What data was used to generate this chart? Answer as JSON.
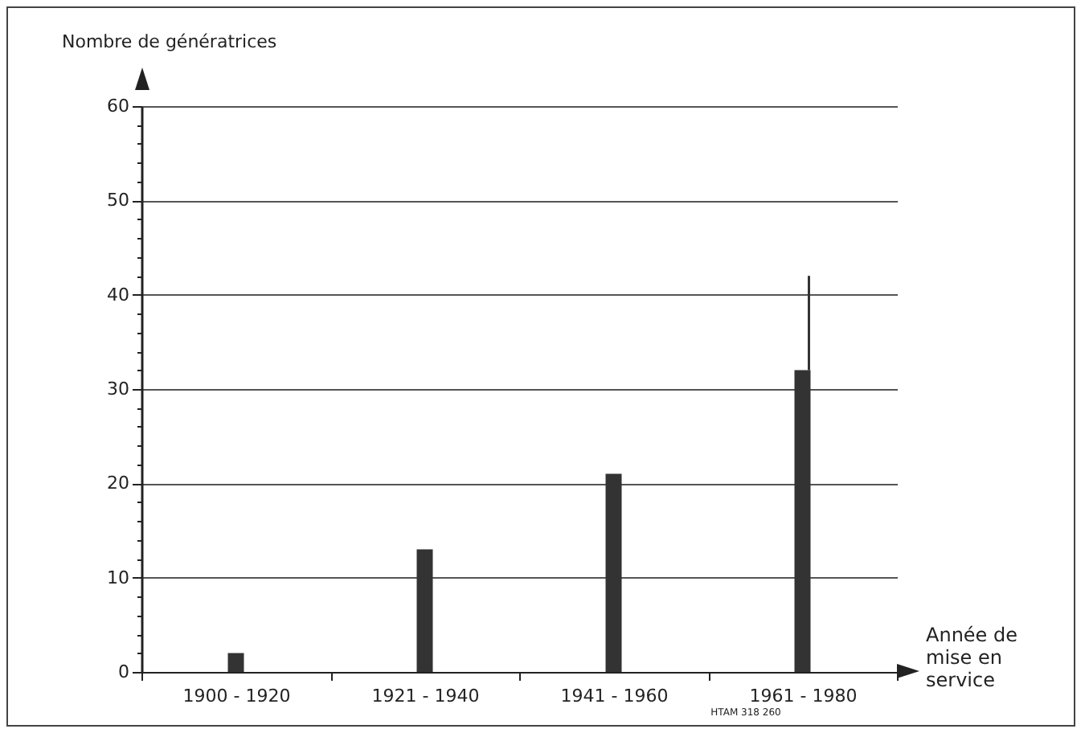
{
  "chart_data": {
    "type": "bar",
    "xlabel": "Année de mise en service",
    "ylabel": "Nombre de génératrices",
    "categories": [
      "1900 - 1920",
      "1921 - 1940",
      "1941 - 1960",
      "1961 - 1980"
    ],
    "values": [
      2,
      13,
      21,
      32
    ],
    "errors": [
      null,
      null,
      null,
      [
        32,
        42
      ]
    ],
    "color": "#333333",
    "ylim": [
      0,
      60
    ],
    "yticks": [
      0,
      {
        "value": 2,
        "label": null
      },
      {
        "value": 4,
        "label": null
      },
      {
        "value": 6,
        "label": null
      },
      {
        "value": 8,
        "label": null
      },
      10,
      {
        "value": 12,
        "label": null
      },
      {
        "value": 14,
        "label": null
      },
      {
        "value": 16,
        "label": null
      },
      {
        "value": 18,
        "label": null
      },
      20,
      {
        "value": 22,
        "label": null
      },
      {
        "value": 24,
        "label": null
      },
      {
        "value": 26,
        "label": null
      },
      {
        "value": 28,
        "label": null
      },
      30,
      {
        "value": 32,
        "label": null
      },
      {
        "value": 34,
        "label": null
      },
      {
        "value": 36,
        "label": null
      },
      {
        "value": 38,
        "label": null
      },
      40,
      {
        "value": 42,
        "label": null
      },
      {
        "value": 44,
        "label": null
      },
      {
        "value": 46,
        "label": null
      },
      {
        "value": 48,
        "label": null
      },
      50,
      {
        "value": 52,
        "label": null
      },
      {
        "value": 54,
        "label": null
      },
      {
        "value": 56,
        "label": null
      },
      {
        "value": 58,
        "label": null
      },
      60
    ],
    "grid": "y",
    "annotations": [
      "HTAM 318 260"
    ]
  }
}
